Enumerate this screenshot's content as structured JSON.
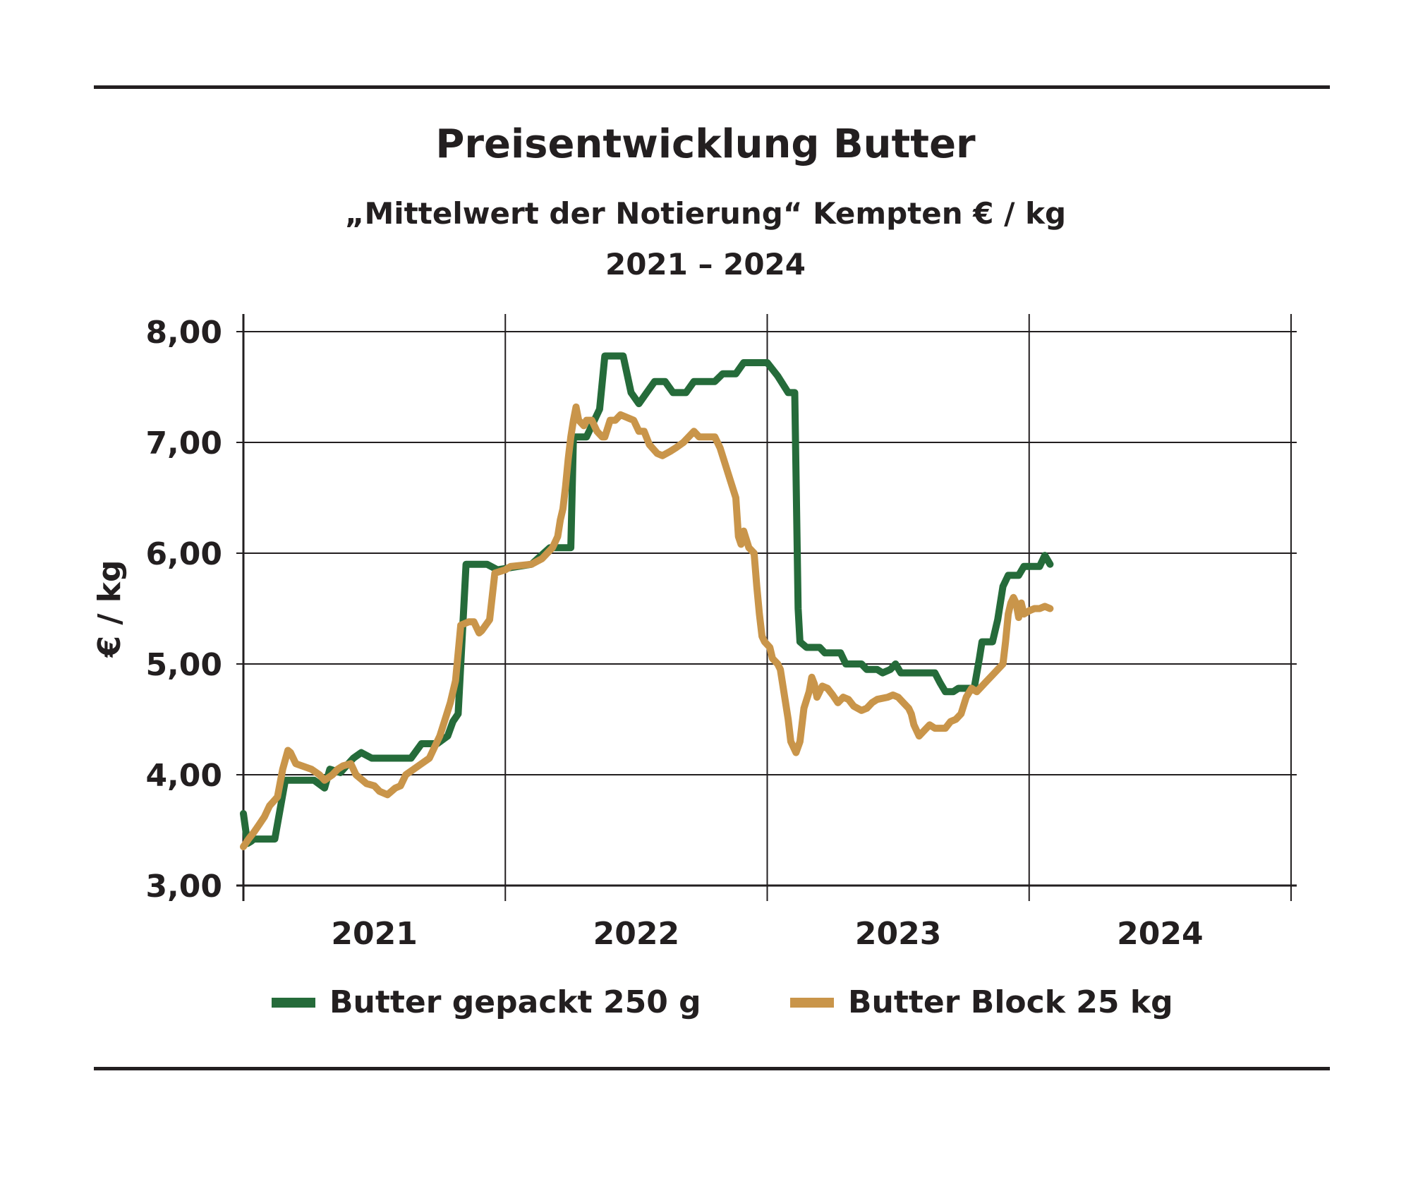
{
  "header": {
    "title": "Preisentwicklung Butter",
    "subtitle": "„Mittelwert der Notierung“ Kempten € / kg",
    "period": "2021 – 2024"
  },
  "colors": {
    "green": "#256b3a",
    "gold": "#c9954a",
    "axis": "#231f20"
  },
  "chart_data": {
    "type": "line",
    "ylabel": "€ / kg",
    "ylim": [
      3,
      8
    ],
    "yticks": [
      "3,00",
      "4,00",
      "5,00",
      "6,00",
      "7,00",
      "8,00"
    ],
    "xlim": [
      2021.0,
      2025.0
    ],
    "xticks": [
      "2021",
      "2022",
      "2023",
      "2024"
    ],
    "grid": true,
    "legend_position": "bottom",
    "series": [
      {
        "name": "Butter gepackt 250 g",
        "color": "#256b3a",
        "points": [
          [
            2021.0,
            3.65
          ],
          [
            2021.016,
            3.38
          ],
          [
            2021.03,
            3.4
          ],
          [
            2021.04,
            3.42
          ],
          [
            2021.12,
            3.42
          ],
          [
            2021.16,
            3.95
          ],
          [
            2021.27,
            3.95
          ],
          [
            2021.31,
            3.88
          ],
          [
            2021.33,
            4.05
          ],
          [
            2021.37,
            4.02
          ],
          [
            2021.42,
            4.15
          ],
          [
            2021.45,
            4.2
          ],
          [
            2021.49,
            4.15
          ],
          [
            2021.64,
            4.15
          ],
          [
            2021.68,
            4.28
          ],
          [
            2021.74,
            4.28
          ],
          [
            2021.78,
            4.35
          ],
          [
            2021.8,
            4.48
          ],
          [
            2021.82,
            4.55
          ],
          [
            2021.85,
            5.9
          ],
          [
            2021.93,
            5.9
          ],
          [
            2021.97,
            5.85
          ],
          [
            2022.1,
            5.9
          ],
          [
            2022.17,
            6.05
          ],
          [
            2022.25,
            6.05
          ],
          [
            2022.26,
            7.05
          ],
          [
            2022.31,
            7.05
          ],
          [
            2022.33,
            7.15
          ],
          [
            2022.36,
            7.3
          ],
          [
            2022.38,
            7.78
          ],
          [
            2022.45,
            7.78
          ],
          [
            2022.48,
            7.45
          ],
          [
            2022.51,
            7.35
          ],
          [
            2022.54,
            7.45
          ],
          [
            2022.57,
            7.55
          ],
          [
            2022.61,
            7.55
          ],
          [
            2022.64,
            7.45
          ],
          [
            2022.69,
            7.45
          ],
          [
            2022.72,
            7.55
          ],
          [
            2022.8,
            7.55
          ],
          [
            2022.83,
            7.62
          ],
          [
            2022.88,
            7.62
          ],
          [
            2022.91,
            7.72
          ],
          [
            2023.0,
            7.72
          ],
          [
            2023.04,
            7.6
          ],
          [
            2023.08,
            7.45
          ],
          [
            2023.105,
            7.45
          ],
          [
            2023.118,
            5.5
          ],
          [
            2023.125,
            5.2
          ],
          [
            2023.15,
            5.15
          ],
          [
            2023.2,
            5.15
          ],
          [
            2023.22,
            5.1
          ],
          [
            2023.28,
            5.1
          ],
          [
            2023.3,
            5.0
          ],
          [
            2023.36,
            5.0
          ],
          [
            2023.38,
            4.95
          ],
          [
            2023.42,
            4.95
          ],
          [
            2023.44,
            4.92
          ],
          [
            2023.47,
            4.95
          ],
          [
            2023.49,
            5.0
          ],
          [
            2023.51,
            4.92
          ],
          [
            2023.64,
            4.92
          ],
          [
            2023.66,
            4.83
          ],
          [
            2023.68,
            4.75
          ],
          [
            2023.71,
            4.75
          ],
          [
            2023.73,
            4.78
          ],
          [
            2023.79,
            4.78
          ],
          [
            2023.81,
            5.05
          ],
          [
            2023.82,
            5.2
          ],
          [
            2023.86,
            5.2
          ],
          [
            2023.88,
            5.4
          ],
          [
            2023.9,
            5.7
          ],
          [
            2023.92,
            5.8
          ],
          [
            2023.96,
            5.8
          ],
          [
            2023.98,
            5.88
          ],
          [
            2024.04,
            5.88
          ],
          [
            2024.06,
            5.98
          ],
          [
            2024.08,
            5.9
          ]
        ]
      },
      {
        "name": "Butter Block 25 kg",
        "color": "#c9954a",
        "points": [
          [
            2021.0,
            3.35
          ],
          [
            2021.02,
            3.42
          ],
          [
            2021.04,
            3.48
          ],
          [
            2021.06,
            3.55
          ],
          [
            2021.08,
            3.62
          ],
          [
            2021.1,
            3.72
          ],
          [
            2021.13,
            3.8
          ],
          [
            2021.15,
            4.05
          ],
          [
            2021.17,
            4.22
          ],
          [
            2021.18,
            4.2
          ],
          [
            2021.2,
            4.1
          ],
          [
            2021.26,
            4.05
          ],
          [
            2021.29,
            4.0
          ],
          [
            2021.31,
            3.95
          ],
          [
            2021.34,
            4.0
          ],
          [
            2021.36,
            4.05
          ],
          [
            2021.38,
            4.08
          ],
          [
            2021.41,
            4.1
          ],
          [
            2021.43,
            4.0
          ],
          [
            2021.47,
            3.92
          ],
          [
            2021.5,
            3.9
          ],
          [
            2021.52,
            3.85
          ],
          [
            2021.55,
            3.82
          ],
          [
            2021.58,
            3.88
          ],
          [
            2021.6,
            3.9
          ],
          [
            2021.62,
            4.0
          ],
          [
            2021.65,
            4.05
          ],
          [
            2021.68,
            4.1
          ],
          [
            2021.71,
            4.15
          ],
          [
            2021.73,
            4.25
          ],
          [
            2021.75,
            4.35
          ],
          [
            2021.77,
            4.5
          ],
          [
            2021.79,
            4.65
          ],
          [
            2021.81,
            4.85
          ],
          [
            2021.82,
            5.1
          ],
          [
            2021.83,
            5.35
          ],
          [
            2021.86,
            5.38
          ],
          [
            2021.88,
            5.38
          ],
          [
            2021.9,
            5.28
          ],
          [
            2021.91,
            5.3
          ],
          [
            2021.94,
            5.4
          ],
          [
            2021.96,
            5.82
          ],
          [
            2022.0,
            5.85
          ],
          [
            2022.02,
            5.88
          ],
          [
            2022.1,
            5.9
          ],
          [
            2022.14,
            5.95
          ],
          [
            2022.18,
            6.05
          ],
          [
            2022.2,
            6.15
          ],
          [
            2022.21,
            6.3
          ],
          [
            2022.22,
            6.4
          ],
          [
            2022.23,
            6.6
          ],
          [
            2022.24,
            6.85
          ],
          [
            2022.25,
            7.05
          ],
          [
            2022.26,
            7.2
          ],
          [
            2022.27,
            7.32
          ],
          [
            2022.28,
            7.2
          ],
          [
            2022.3,
            7.15
          ],
          [
            2022.31,
            7.2
          ],
          [
            2022.33,
            7.2
          ],
          [
            2022.35,
            7.1
          ],
          [
            2022.37,
            7.05
          ],
          [
            2022.38,
            7.05
          ],
          [
            2022.4,
            7.2
          ],
          [
            2022.42,
            7.2
          ],
          [
            2022.44,
            7.25
          ],
          [
            2022.47,
            7.22
          ],
          [
            2022.49,
            7.2
          ],
          [
            2022.51,
            7.1
          ],
          [
            2022.53,
            7.1
          ],
          [
            2022.55,
            6.98
          ],
          [
            2022.58,
            6.9
          ],
          [
            2022.6,
            6.88
          ],
          [
            2022.63,
            6.92
          ],
          [
            2022.65,
            6.95
          ],
          [
            2022.68,
            7.0
          ],
          [
            2022.7,
            7.05
          ],
          [
            2022.72,
            7.1
          ],
          [
            2022.74,
            7.05
          ],
          [
            2022.8,
            7.05
          ],
          [
            2022.82,
            6.95
          ],
          [
            2022.84,
            6.8
          ],
          [
            2022.86,
            6.65
          ],
          [
            2022.88,
            6.5
          ],
          [
            2022.89,
            6.15
          ],
          [
            2022.9,
            6.08
          ],
          [
            2022.91,
            6.2
          ],
          [
            2022.93,
            6.05
          ],
          [
            2022.95,
            6.0
          ],
          [
            2022.96,
            5.7
          ],
          [
            2022.97,
            5.45
          ],
          [
            2022.98,
            5.25
          ],
          [
            2022.99,
            5.2
          ],
          [
            2023.01,
            5.15
          ],
          [
            2023.02,
            5.05
          ],
          [
            2023.04,
            5.0
          ],
          [
            2023.05,
            4.95
          ],
          [
            2023.06,
            4.8
          ],
          [
            2023.08,
            4.5
          ],
          [
            2023.09,
            4.3
          ],
          [
            2023.1,
            4.25
          ],
          [
            2023.11,
            4.2
          ],
          [
            2023.125,
            4.3
          ],
          [
            2023.14,
            4.6
          ],
          [
            2023.16,
            4.75
          ],
          [
            2023.17,
            4.88
          ],
          [
            2023.18,
            4.82
          ],
          [
            2023.19,
            4.7
          ],
          [
            2023.2,
            4.75
          ],
          [
            2023.21,
            4.8
          ],
          [
            2023.23,
            4.78
          ],
          [
            2023.25,
            4.72
          ],
          [
            2023.27,
            4.65
          ],
          [
            2023.29,
            4.7
          ],
          [
            2023.31,
            4.68
          ],
          [
            2023.33,
            4.62
          ],
          [
            2023.36,
            4.58
          ],
          [
            2023.38,
            4.6
          ],
          [
            2023.4,
            4.65
          ],
          [
            2023.42,
            4.68
          ],
          [
            2023.46,
            4.7
          ],
          [
            2023.48,
            4.72
          ],
          [
            2023.5,
            4.7
          ],
          [
            2023.52,
            4.65
          ],
          [
            2023.54,
            4.6
          ],
          [
            2023.55,
            4.55
          ],
          [
            2023.56,
            4.45
          ],
          [
            2023.58,
            4.35
          ],
          [
            2023.6,
            4.4
          ],
          [
            2023.62,
            4.45
          ],
          [
            2023.64,
            4.42
          ],
          [
            2023.68,
            4.42
          ],
          [
            2023.7,
            4.48
          ],
          [
            2023.72,
            4.5
          ],
          [
            2023.74,
            4.55
          ],
          [
            2023.76,
            4.7
          ],
          [
            2023.78,
            4.78
          ],
          [
            2023.8,
            4.75
          ],
          [
            2023.82,
            4.8
          ],
          [
            2023.84,
            4.85
          ],
          [
            2023.86,
            4.9
          ],
          [
            2023.88,
            4.95
          ],
          [
            2023.9,
            5.0
          ],
          [
            2023.91,
            5.2
          ],
          [
            2023.92,
            5.45
          ],
          [
            2023.93,
            5.55
          ],
          [
            2023.94,
            5.6
          ],
          [
            2023.95,
            5.55
          ],
          [
            2023.96,
            5.42
          ],
          [
            2023.97,
            5.55
          ],
          [
            2023.98,
            5.45
          ],
          [
            2024.0,
            5.48
          ],
          [
            2024.02,
            5.5
          ],
          [
            2024.04,
            5.5
          ],
          [
            2024.06,
            5.52
          ],
          [
            2024.08,
            5.5
          ]
        ]
      }
    ]
  }
}
